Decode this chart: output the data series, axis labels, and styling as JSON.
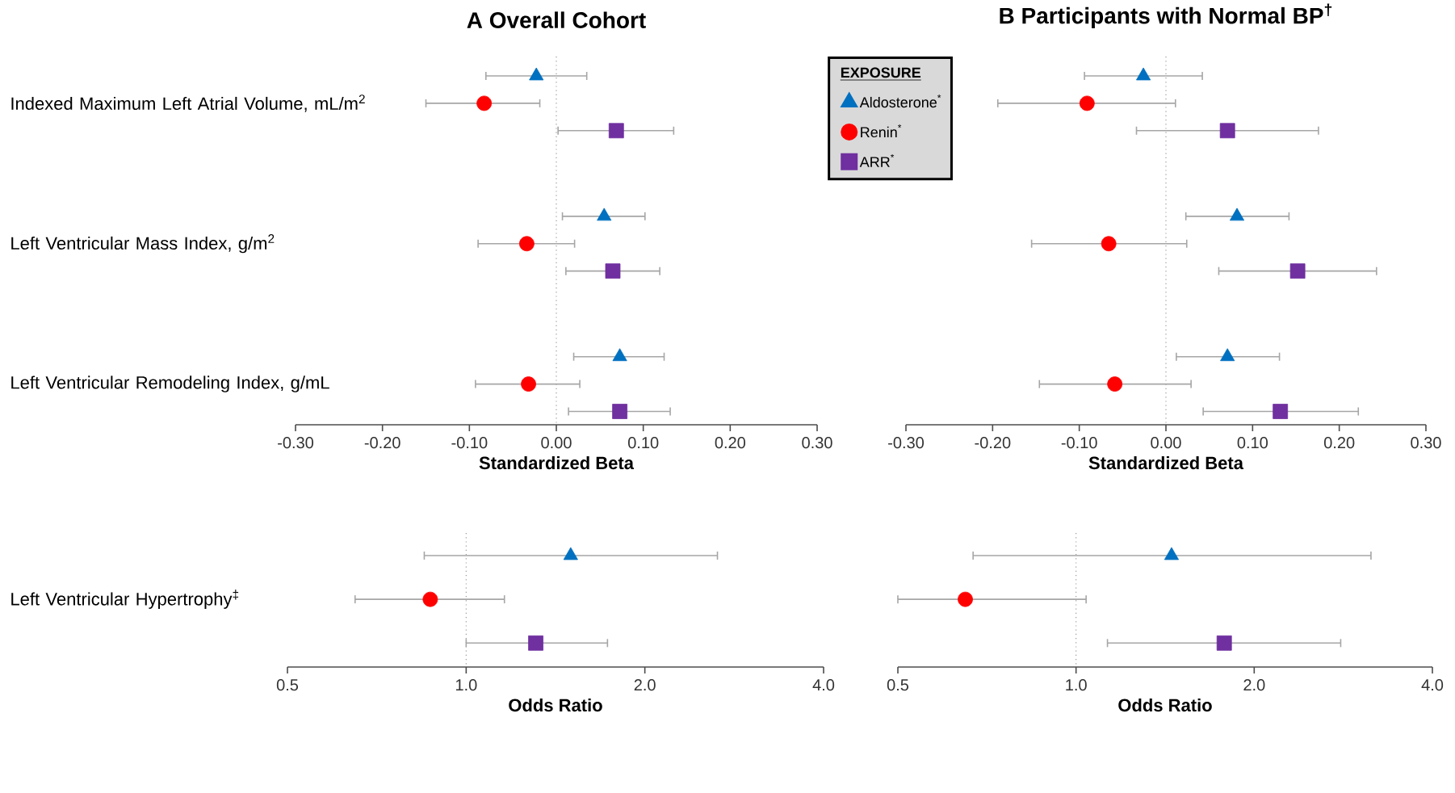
{
  "chart_data": [
    {
      "type": "scatter",
      "orientation": "horizontal",
      "title": "A Overall Cohort",
      "xlabel": "Standardized Beta",
      "categories": [
        "Indexed Maximum Left Atrial Volume, mL/m$^{2}$",
        "Left Ventricular Mass Index, g/m$^{2}$",
        "Left Ventricular Remodeling Index, g/mL"
      ],
      "xlim": [
        -0.3,
        0.3
      ],
      "xticks": [
        {
          "value": -0.3,
          "label": "-0.30"
        },
        {
          "value": -0.2,
          "label": "-0.20"
        },
        {
          "value": -0.1,
          "label": "-0.10"
        },
        {
          "value": 0,
          "label": "0.00"
        },
        {
          "value": 0.1,
          "label": "0.10"
        },
        {
          "value": 0.2,
          "label": "0.20"
        },
        {
          "value": 0.3,
          "label": "0.30"
        }
      ],
      "series": [
        {
          "color": "#0070c0",
          "marker": "triangle",
          "values": [
            -0.023,
            0.055,
            0.073
          ],
          "errors": [
            [
              -0.081,
              0.035
            ],
            [
              0.007,
              0.102
            ],
            [
              0.02,
              0.124
            ]
          ]
        },
        {
          "color": "#ff0000",
          "marker": "circle",
          "values": [
            -0.083,
            -0.034,
            -0.032
          ],
          "errors": [
            [
              -0.15,
              -0.019
            ],
            [
              -0.09,
              0.021
            ],
            [
              -0.093,
              0.027
            ]
          ]
        },
        {
          "color": "#7030a0",
          "marker": "square",
          "values": [
            0.069,
            0.065,
            0.073
          ],
          "errors": [
            [
              0.002,
              0.135
            ],
            [
              0.011,
              0.119
            ],
            [
              0.014,
              0.131
            ]
          ]
        }
      ],
      "ref_lines": [
        {
          "axis": "x",
          "value": 0,
          "color": "#999999",
          "line_style": "dotted"
        }
      ]
    },
    {
      "type": "scatter",
      "orientation": "horizontal",
      "title": "B Participants with Normal BP$^{†}$",
      "xlabel": "Standardized Beta",
      "categories": [
        null,
        null,
        null
      ],
      "legend": "top left",
      "legend_title": "EXPOSURE",
      "xlim": [
        -0.3,
        0.3
      ],
      "xticks": [
        {
          "value": -0.3,
          "label": "-0.30"
        },
        {
          "value": -0.2,
          "label": "-0.20"
        },
        {
          "value": -0.1,
          "label": "-0.10"
        },
        {
          "value": 0,
          "label": "0.00"
        },
        {
          "value": 0.1,
          "label": "0.10"
        },
        {
          "value": 0.2,
          "label": "0.20"
        },
        {
          "value": 0.3,
          "label": "0.30"
        }
      ],
      "series": [
        {
          "name": "Aldosterone$^{*}$",
          "color": "#0070c0",
          "marker": "triangle",
          "values": [
            -0.026,
            0.082,
            0.071
          ],
          "errors": [
            [
              -0.094,
              0.042
            ],
            [
              0.023,
              0.142
            ],
            [
              0.012,
              0.131
            ]
          ]
        },
        {
          "name": "Renin$^{*}$",
          "color": "#ff0000",
          "marker": "circle",
          "values": [
            -0.091,
            -0.066,
            -0.059
          ],
          "errors": [
            [
              -0.194,
              0.011
            ],
            [
              -0.155,
              0.024
            ],
            [
              -0.146,
              0.029
            ]
          ]
        },
        {
          "name": "ARR$^{*}$",
          "color": "#7030a0",
          "marker": "square",
          "values": [
            0.071,
            0.152,
            0.132
          ],
          "errors": [
            [
              -0.034,
              0.176
            ],
            [
              0.061,
              0.243
            ],
            [
              0.043,
              0.222
            ]
          ]
        }
      ],
      "ref_lines": [
        {
          "axis": "x",
          "value": 0,
          "color": "#999999",
          "line_style": "dotted"
        }
      ]
    },
    {
      "type": "scatter",
      "orientation": "horizontal",
      "xlabel": "Odds Ratio",
      "log": "x",
      "categories": [
        "Left Ventricular Hypertrophy$^{‡}$"
      ],
      "xlim": [
        0.5,
        4
      ],
      "xticks": [
        {
          "value": 0.5,
          "label": "0.5"
        },
        {
          "value": 1,
          "label": "1.0"
        },
        {
          "value": 2,
          "label": "2.0"
        },
        {
          "value": 4,
          "label": "4.0"
        }
      ],
      "series": [
        {
          "color": "#0070c0",
          "marker": "triangle",
          "values": [
            1.5
          ],
          "errors": [
            [
              0.85,
              2.65
            ]
          ]
        },
        {
          "color": "#ff0000",
          "marker": "circle",
          "values": [
            0.87
          ],
          "errors": [
            [
              0.65,
              1.16
            ]
          ]
        },
        {
          "color": "#7030a0",
          "marker": "square",
          "values": [
            1.31
          ],
          "errors": [
            [
              1.0,
              1.73
            ]
          ]
        }
      ],
      "ref_lines": [
        {
          "axis": "x",
          "value": 1,
          "color": "#999999",
          "line_style": "dotted"
        }
      ]
    },
    {
      "type": "scatter",
      "orientation": "horizontal",
      "xlabel": "Odds Ratio",
      "log": "x",
      "categories": [
        null
      ],
      "xlim": [
        0.5,
        4
      ],
      "xticks": [
        {
          "value": 0.5,
          "label": "0.5"
        },
        {
          "value": 1,
          "label": "1.0"
        },
        {
          "value": 2,
          "label": "2.0"
        },
        {
          "value": 4,
          "label": "4.0"
        }
      ],
      "series": [
        {
          "color": "#0070c0",
          "marker": "triangle",
          "values": [
            1.45
          ],
          "errors": [
            [
              0.67,
              3.15
            ]
          ]
        },
        {
          "color": "#ff0000",
          "marker": "circle",
          "values": [
            0.65
          ],
          "errors": [
            [
              0.5,
              1.04
            ]
          ]
        },
        {
          "color": "#7030a0",
          "marker": "square",
          "values": [
            1.78
          ],
          "errors": [
            [
              1.13,
              2.8
            ]
          ]
        }
      ],
      "ref_lines": [
        {
          "axis": "x",
          "value": 1,
          "color": "#999999",
          "line_style": "dotted"
        }
      ]
    }
  ]
}
